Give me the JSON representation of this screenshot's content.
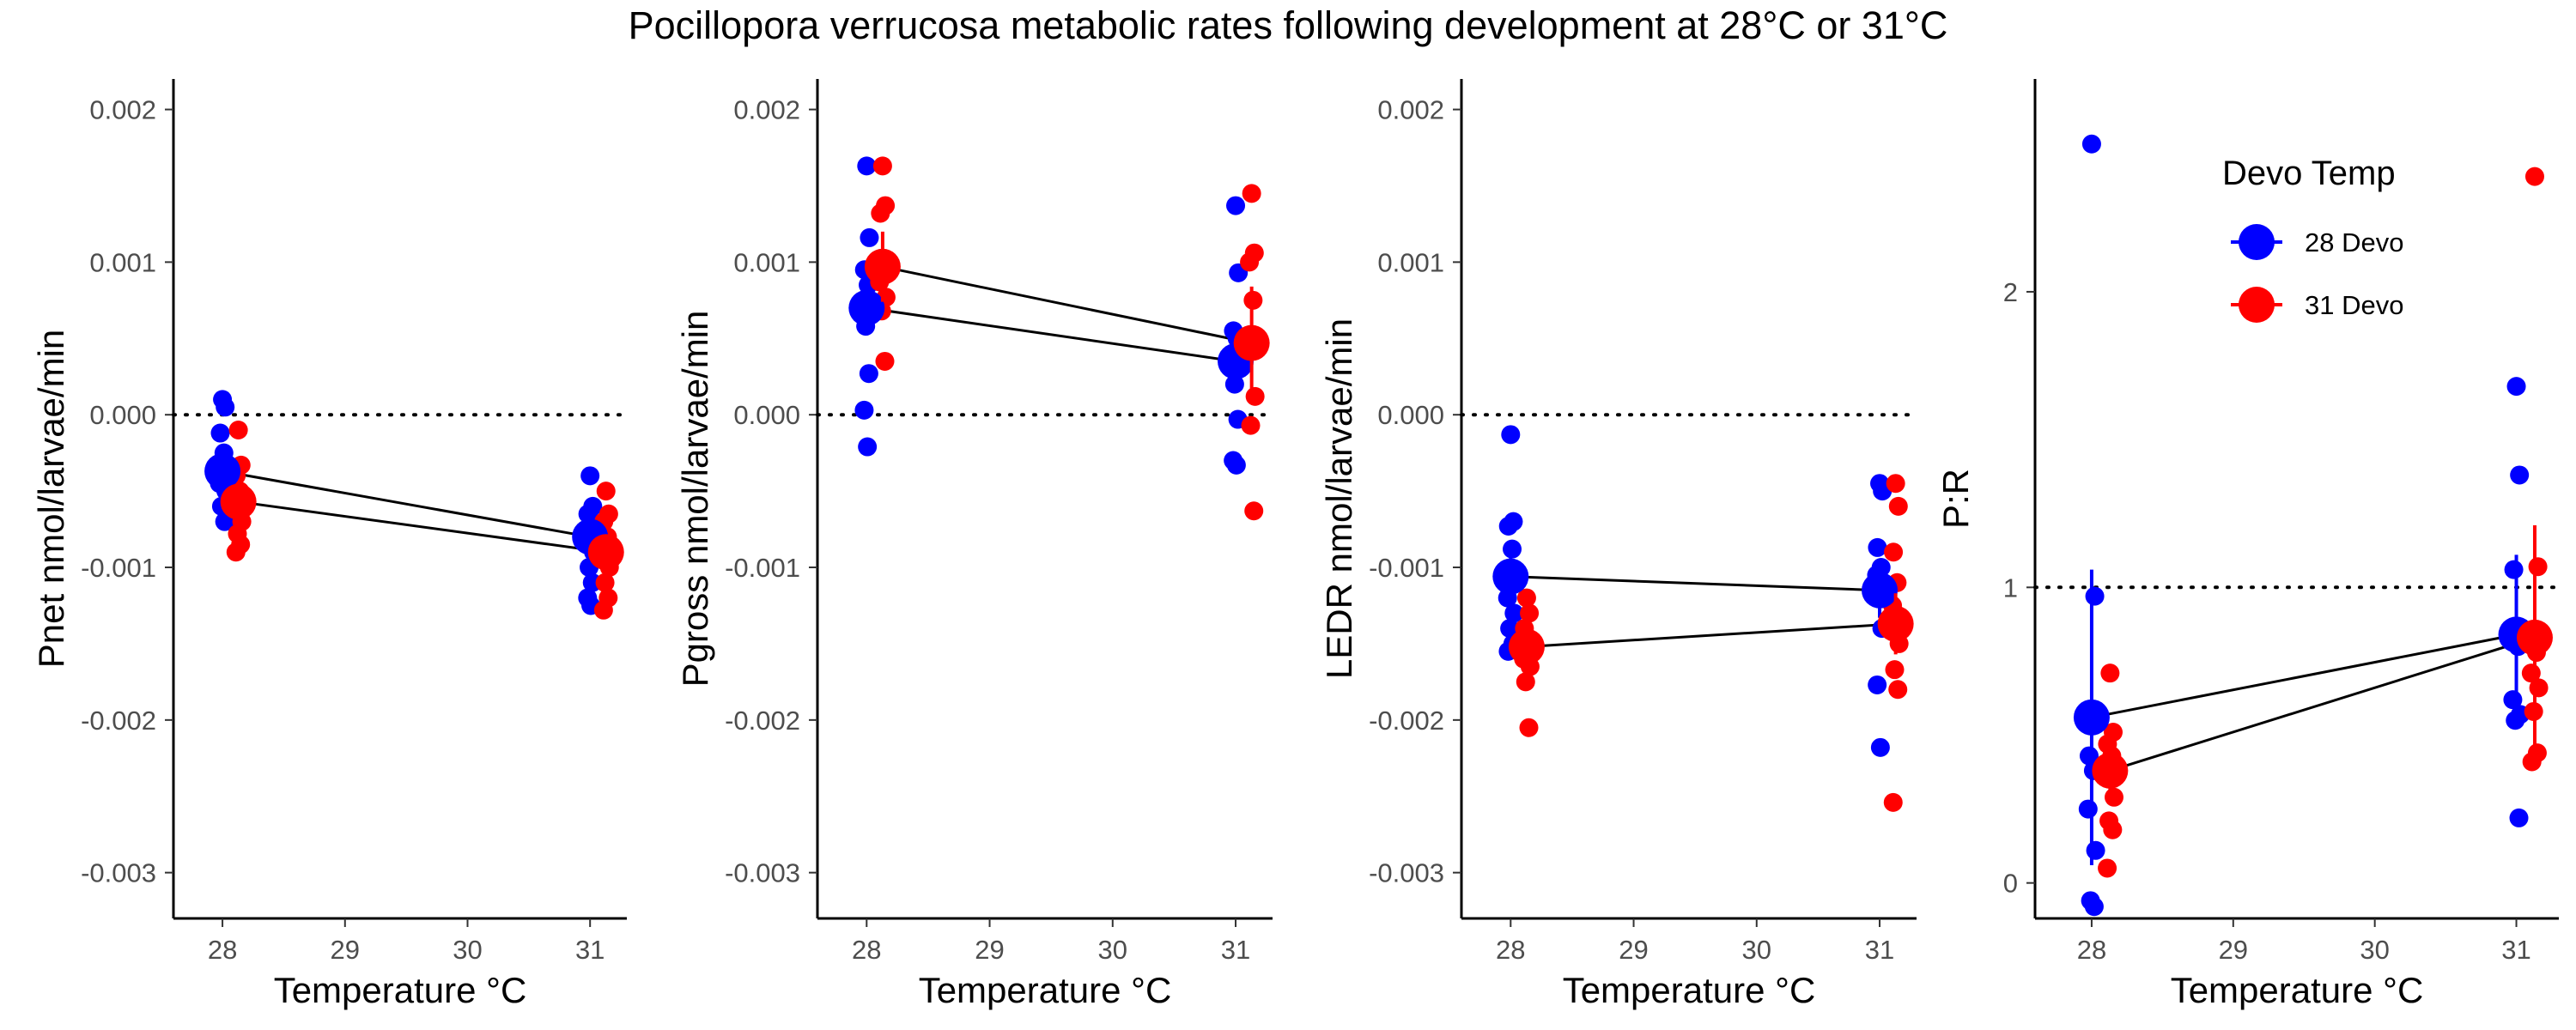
{
  "title": "Pocillopora verrucosa metabolic rates following development at 28°C or 31°C",
  "legend": {
    "title": "Devo Temp",
    "items": [
      {
        "label": "28 Devo",
        "color": "#0000FF"
      },
      {
        "label": "31 Devo",
        "color": "#FF0000"
      }
    ]
  },
  "colors": {
    "devo28": "#0000FF",
    "devo31": "#FF0000",
    "axis": "#000000",
    "tick_text": "#4D4D4D"
  },
  "chart_data": [
    {
      "type": "scatter",
      "xlabel": "Temperature °C",
      "ylabel": "Pnet nmol/larvae/min",
      "xlim": [
        27.6,
        31.3
      ],
      "ylim": [
        -0.0033,
        0.0022
      ],
      "xticks": [
        28,
        29,
        30,
        31
      ],
      "xtick_labels": [
        "28",
        "29",
        "30",
        "31"
      ],
      "yticks": [
        0.002,
        0.001,
        0.0,
        -0.001,
        -0.002,
        -0.003
      ],
      "ytick_labels": [
        "0.002",
        "0.001",
        "0.000",
        "-0.001",
        "-0.002",
        "-0.003"
      ],
      "reference_line": 0.0,
      "series": [
        {
          "name": "28 Devo",
          "color": "#0000FF",
          "raw": {
            "28": [
              0.0001,
              5e-05,
              -0.00012,
              -0.00025,
              -0.00045,
              -0.0005,
              -0.0006,
              -0.0007
            ],
            "31": [
              -0.0004,
              -0.0006,
              -0.00065,
              -0.0007,
              -0.0008,
              -0.0009,
              -0.001,
              -0.0011,
              -0.0012,
              -0.00125
            ]
          },
          "means": [
            {
              "x": 28,
              "y": -0.00037,
              "se": 0.0001
            },
            {
              "x": 31,
              "y": -0.0008,
              "se": 9e-05
            }
          ]
        },
        {
          "name": "31 Devo",
          "color": "#FF0000",
          "raw": {
            "28": [
              -0.0001,
              -0.00033,
              -0.0004,
              -0.0005,
              -0.0006,
              -0.0007,
              -0.00078,
              -0.00085,
              -0.0009
            ],
            "31": [
              -0.0005,
              -0.00065,
              -0.0007,
              -0.0008,
              -0.0009,
              -0.001,
              -0.0011,
              -0.0012,
              -0.00128
            ]
          },
          "means": [
            {
              "x": 28,
              "y": -0.00057,
              "se": 0.0001
            },
            {
              "x": 31,
              "y": -0.0009,
              "se": 8e-05
            }
          ]
        }
      ]
    },
    {
      "type": "scatter",
      "xlabel": "Temperature °C",
      "ylabel": "Pgross nmol/larvae/min",
      "xlim": [
        27.6,
        31.3
      ],
      "ylim": [
        -0.0033,
        0.0022
      ],
      "xticks": [
        28,
        29,
        30,
        31
      ],
      "xtick_labels": [
        "28",
        "29",
        "30",
        "31"
      ],
      "yticks": [
        0.002,
        0.001,
        0.0,
        -0.001,
        -0.002,
        -0.003
      ],
      "ytick_labels": [
        "0.002",
        "0.001",
        "0.000",
        "-0.001",
        "-0.002",
        "-0.003"
      ],
      "reference_line": 0.0,
      "series": [
        {
          "name": "28 Devo",
          "color": "#0000FF",
          "raw": {
            "28": [
              0.00163,
              0.00116,
              0.00095,
              0.00085,
              0.00075,
              0.00065,
              0.00058,
              0.00027,
              3e-05,
              -0.00021
            ],
            "31": [
              0.00137,
              0.00093,
              0.00055,
              0.0005,
              0.0004,
              0.0003,
              0.0002,
              -3e-05,
              -0.0003,
              -0.00033
            ]
          },
          "means": [
            {
              "x": 28,
              "y": 0.0007,
              "se": 0.00018
            },
            {
              "x": 31,
              "y": 0.00035,
              "se": 0.00013
            }
          ]
        },
        {
          "name": "31 Devo",
          "color": "#FF0000",
          "raw": {
            "28": [
              0.00163,
              0.00137,
              0.00132,
              0.001,
              0.00087,
              0.00077,
              0.00068,
              0.00035
            ],
            "31": [
              0.00145,
              0.00106,
              0.001,
              0.00075,
              0.0005,
              0.00012,
              -7e-05,
              -0.00063
            ]
          },
          "means": [
            {
              "x": 28,
              "y": 0.00097,
              "se": 0.00023
            },
            {
              "x": 31,
              "y": 0.00047,
              "se": 0.00037
            }
          ]
        }
      ]
    },
    {
      "type": "scatter",
      "xlabel": "Temperature °C",
      "ylabel": "LEDR nmol/larvae/min",
      "xlim": [
        27.6,
        31.3
      ],
      "ylim": [
        -0.0033,
        0.0022
      ],
      "xticks": [
        28,
        29,
        30,
        31
      ],
      "xtick_labels": [
        "28",
        "29",
        "30",
        "31"
      ],
      "yticks": [
        0.002,
        0.001,
        0.0,
        -0.001,
        -0.002,
        -0.003
      ],
      "ytick_labels": [
        "0.002",
        "0.001",
        "0.000",
        "-0.001",
        "-0.002",
        "-0.003"
      ],
      "reference_line": 0.0,
      "series": [
        {
          "name": "28 Devo",
          "color": "#0000FF",
          "raw": {
            "28": [
              -0.00013,
              -0.0007,
              -0.00073,
              -0.00088,
              -0.0012,
              -0.0013,
              -0.0014,
              -0.0015,
              -0.00155
            ],
            "31": [
              -0.00045,
              -0.0005,
              -0.00087,
              -0.001,
              -0.00105,
              -0.0011,
              -0.0012,
              -0.0014,
              -0.00177,
              -0.00218
            ]
          },
          "means": [
            {
              "x": 28,
              "y": -0.00106,
              "se": 0.00016
            },
            {
              "x": 31,
              "y": -0.00115,
              "se": 0.00018
            }
          ]
        },
        {
          "name": "31 Devo",
          "color": "#FF0000",
          "raw": {
            "28": [
              -0.0012,
              -0.0013,
              -0.0014,
              -0.0015,
              -0.0016,
              -0.00165,
              -0.00175,
              -0.00205
            ],
            "31": [
              -0.00045,
              -0.0006,
              -0.0009,
              -0.0011,
              -0.00125,
              -0.0015,
              -0.00167,
              -0.0018,
              -0.00254
            ]
          },
          "means": [
            {
              "x": 28,
              "y": -0.00152,
              "se": 0.0001
            },
            {
              "x": 31,
              "y": -0.00137,
              "se": 0.0002
            }
          ]
        }
      ]
    },
    {
      "type": "scatter",
      "xlabel": "Temperature °C",
      "ylabel": "P:R",
      "xlim": [
        27.6,
        31.3
      ],
      "ylim": [
        -0.12,
        2.72
      ],
      "xticks": [
        28,
        29,
        30,
        31
      ],
      "xtick_labels": [
        "28",
        "29",
        "30",
        "31"
      ],
      "yticks": [
        2,
        1,
        0
      ],
      "ytick_labels": [
        "2",
        "1",
        "0"
      ],
      "reference_line": 1,
      "series": [
        {
          "name": "28 Devo",
          "color": "#0000FF",
          "raw": {
            "28": [
              2.5,
              0.97,
              0.43,
              0.38,
              0.25,
              0.11,
              -0.06,
              -0.08
            ],
            "31": [
              1.68,
              1.38,
              1.06,
              0.8,
              0.62,
              0.57,
              0.55,
              0.22
            ]
          },
          "means": [
            {
              "x": 28,
              "y": 0.56,
              "se": 0.5
            },
            {
              "x": 31,
              "y": 0.84,
              "se": 0.27
            }
          ]
        },
        {
          "name": "31 Devo",
          "color": "#FF0000",
          "raw": {
            "28": [
              0.71,
              0.51,
              0.47,
              0.43,
              0.36,
              0.29,
              0.21,
              0.18,
              0.05
            ],
            "31": [
              2.39,
              1.07,
              0.84,
              0.78,
              0.71,
              0.66,
              0.58,
              0.44,
              0.41
            ]
          },
          "means": [
            {
              "x": 28,
              "y": 0.38,
              "se": 0.07
            },
            {
              "x": 31,
              "y": 0.83,
              "se": 0.38
            }
          ]
        }
      ]
    }
  ]
}
